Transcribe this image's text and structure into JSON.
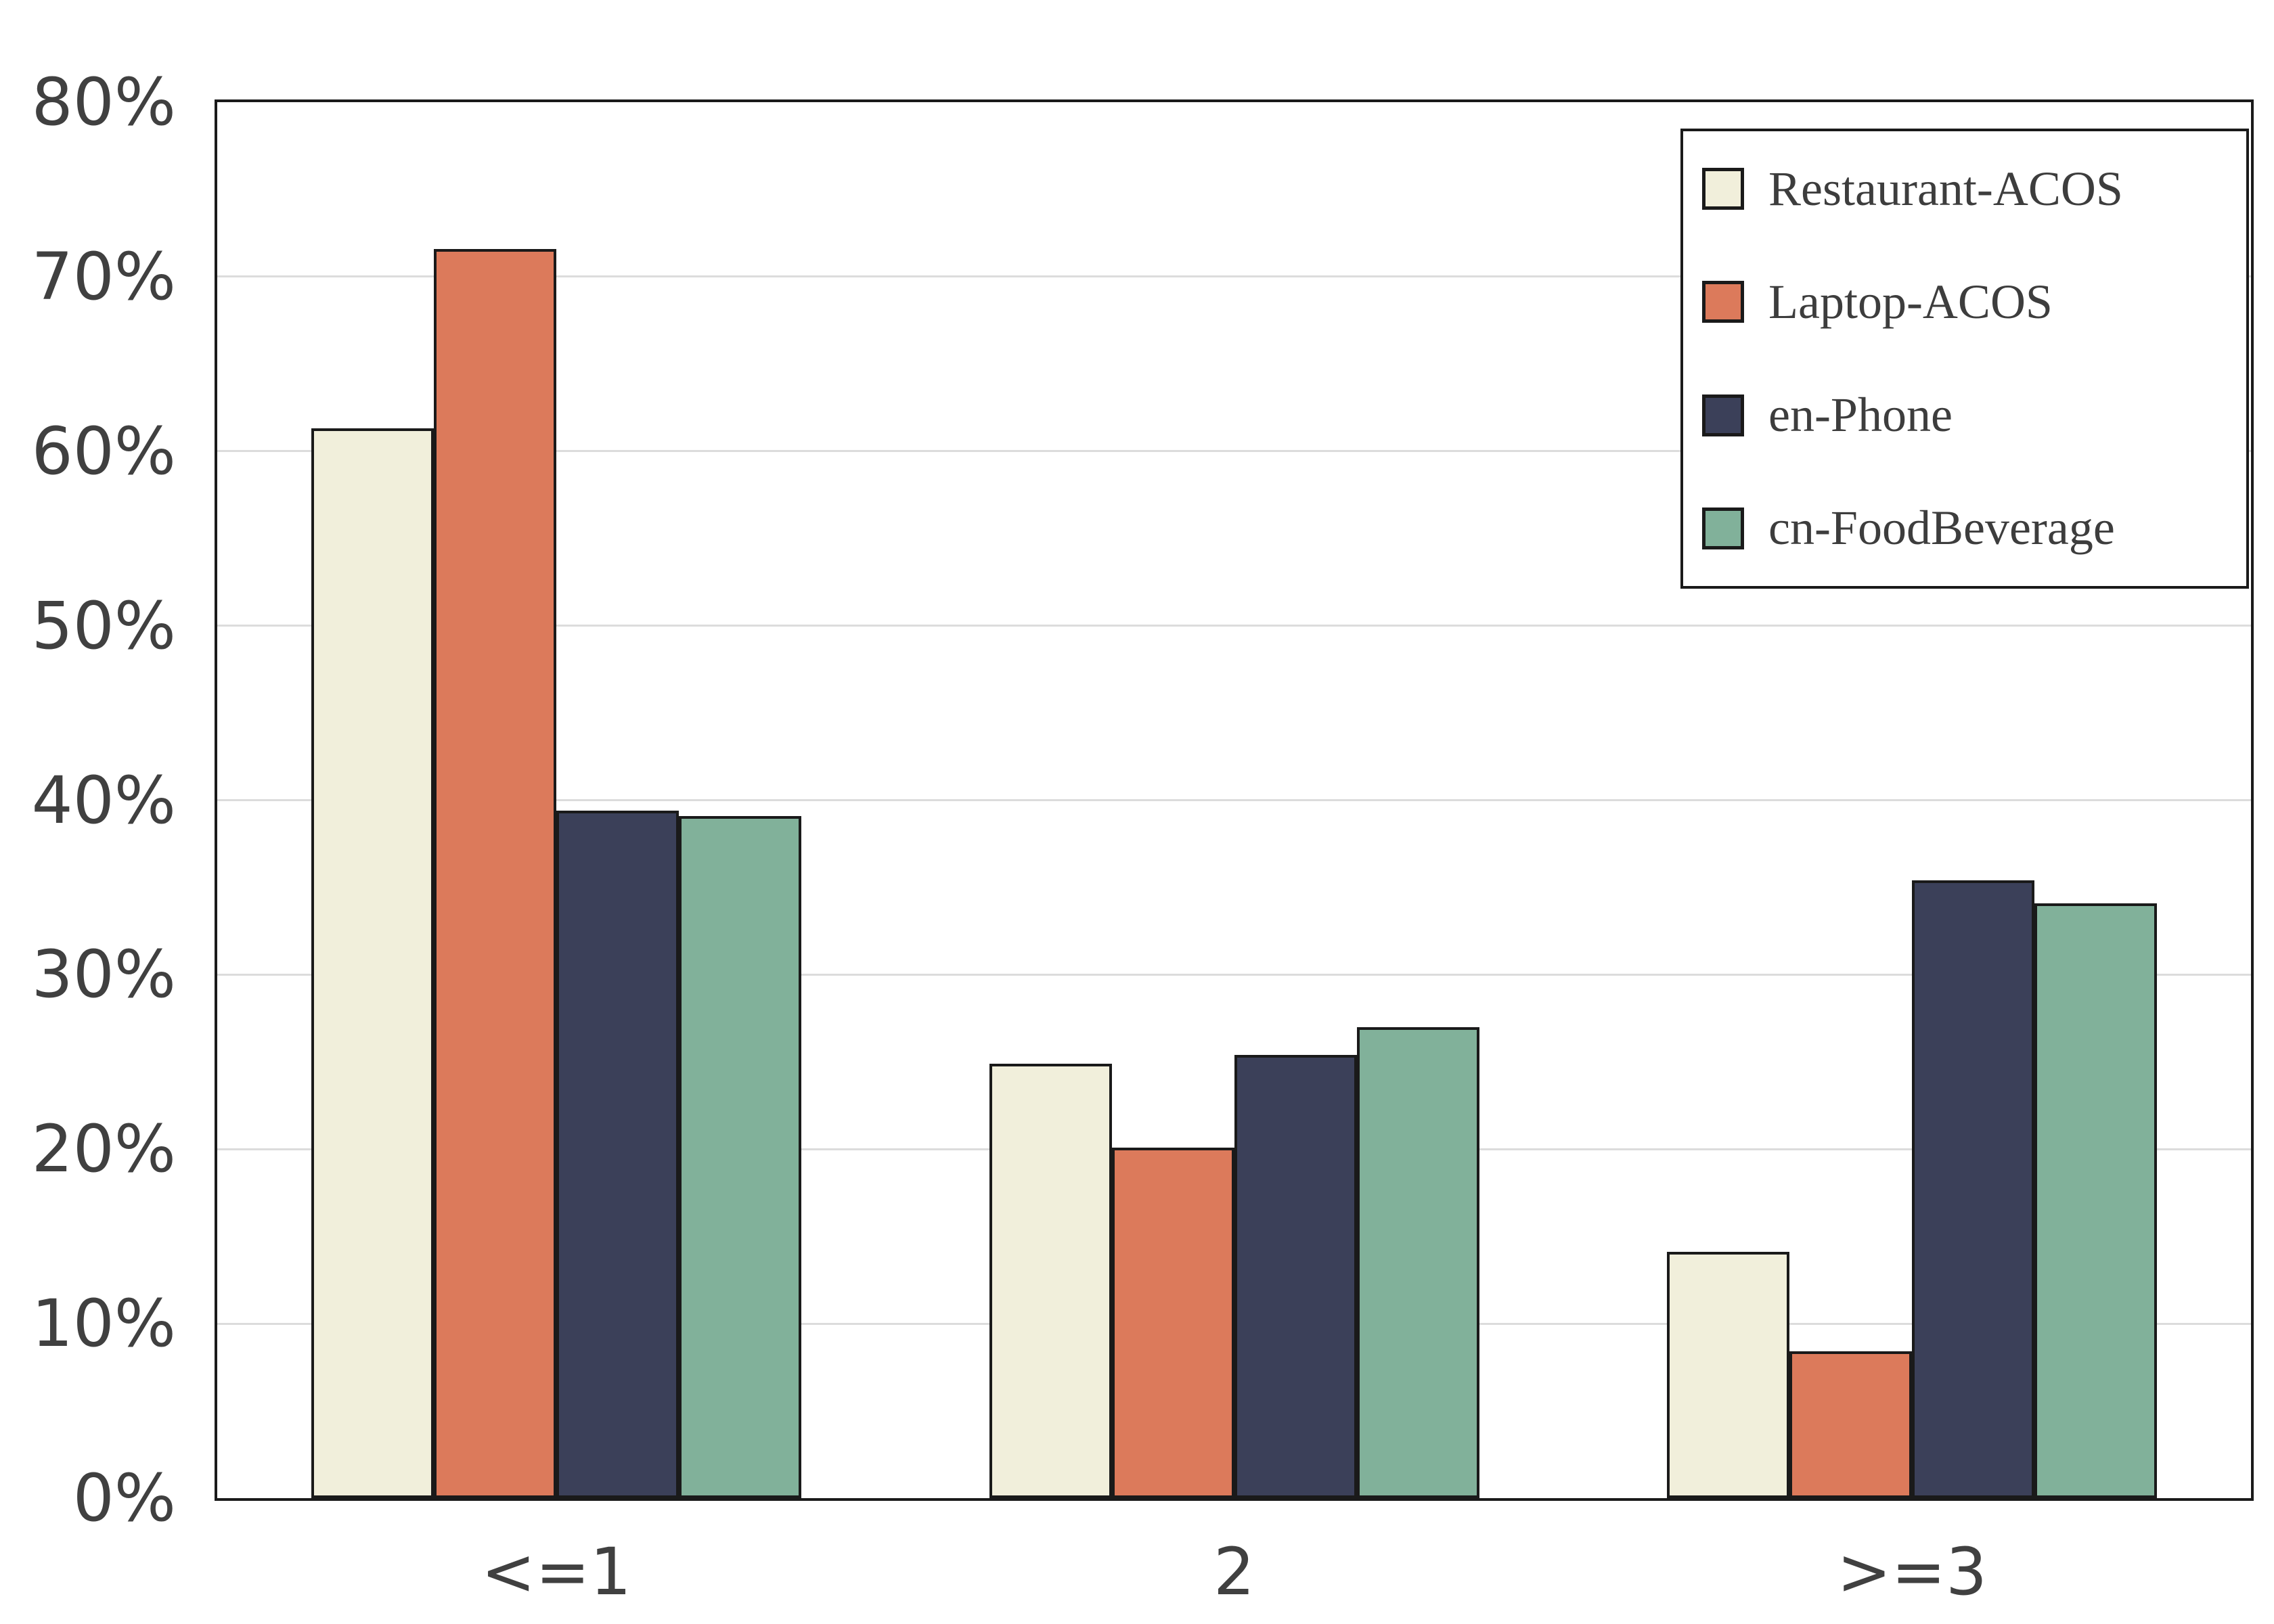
{
  "chart_data": {
    "type": "bar",
    "title": "",
    "xlabel": "",
    "ylabel": "",
    "categories": [
      "<=1",
      "2",
      ">=3"
    ],
    "series": [
      {
        "name": "Restaurant-ACOS",
        "color": "#F1EFDB",
        "values": [
          61.3,
          24.9,
          14.1
        ]
      },
      {
        "name": "Laptop-ACOS",
        "color": "#DC7A5B",
        "values": [
          71.6,
          20.1,
          8.4
        ]
      },
      {
        "name": "en-Phone",
        "color": "#3B4059",
        "values": [
          39.4,
          25.4,
          35.4
        ]
      },
      {
        "name": "cn-FoodBeverage",
        "color": "#81B19A",
        "values": [
          39.1,
          27.0,
          34.1
        ]
      }
    ],
    "ylim": [
      0,
      80
    ],
    "ytick_labels": [
      "0%",
      "10%",
      "20%",
      "30%",
      "40%",
      "50%",
      "60%",
      "70%",
      "80%"
    ],
    "grid": "horizontal-only",
    "gridline_levels": [
      10,
      20,
      30,
      40,
      50,
      60,
      70
    ],
    "legend_position": "upper-right",
    "colors": {
      "bar_edge": "#1a1a1a",
      "gridline": "#dcdcdc",
      "tick_text": "#404040",
      "legend_text": "#3d3d3d",
      "frame": "#1a1a1a",
      "background": "#ffffff"
    }
  }
}
